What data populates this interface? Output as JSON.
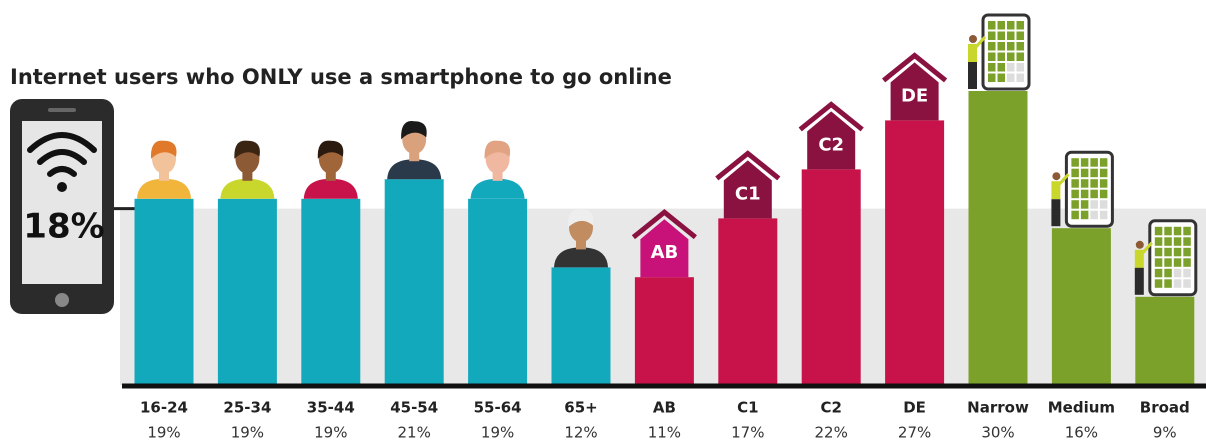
{
  "chart_data": {
    "type": "bar",
    "title": "Internet users who ONLY use a smartphone to go online",
    "categories": [
      "16-24",
      "25-34",
      "35-44",
      "45-54",
      "55-64",
      "65+",
      "AB",
      "C1",
      "C2",
      "DE",
      "Narrow",
      "Medium",
      "Broad"
    ],
    "values": [
      19,
      19,
      19,
      21,
      19,
      12,
      11,
      17,
      22,
      27,
      30,
      16,
      9
    ],
    "value_labels": [
      "19%",
      "19%",
      "19%",
      "21%",
      "19%",
      "12%",
      "11%",
      "17%",
      "22%",
      "27%",
      "30%",
      "16%",
      "9%"
    ],
    "colors": [
      "#13a9bd",
      "#13a9bd",
      "#13a9bd",
      "#13a9bd",
      "#13a9bd",
      "#13a9bd",
      "#c8134a",
      "#c8134a",
      "#c8134a",
      "#c8134a",
      "#7ba12a",
      "#7ba12a",
      "#7ba12a"
    ],
    "overall_value": 18,
    "overall_label": "18%"
  }
}
